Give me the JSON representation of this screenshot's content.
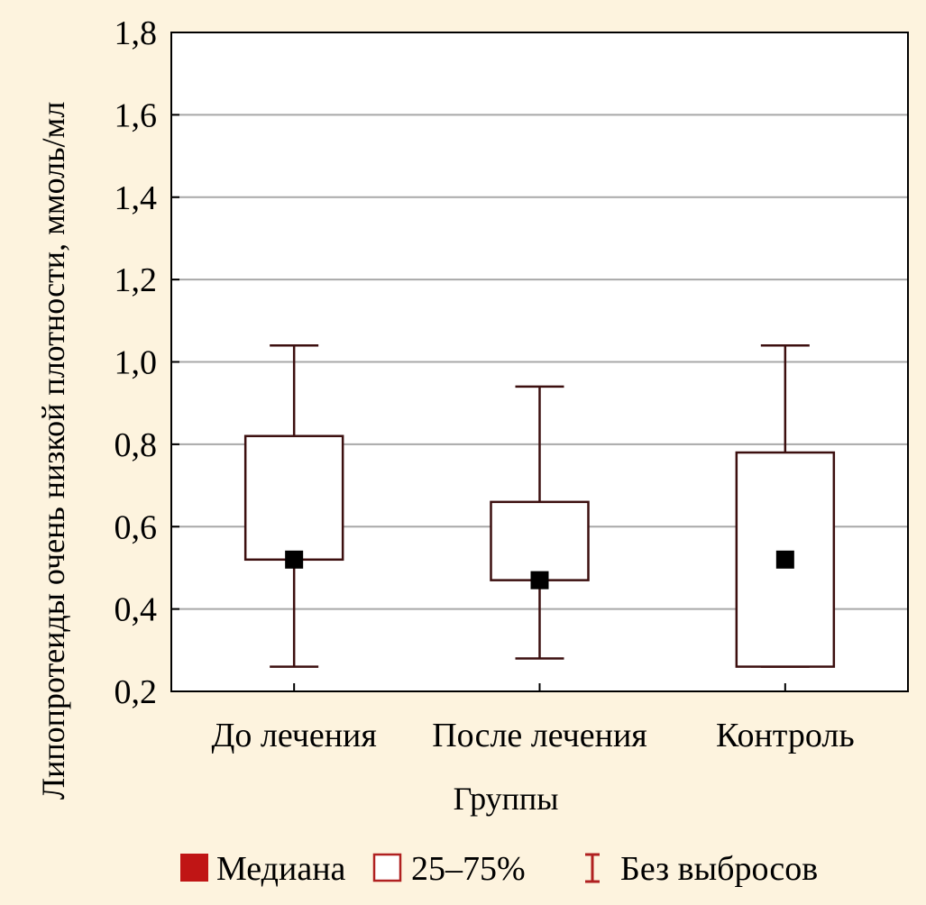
{
  "colors": {
    "background": "#fdf3de",
    "plot_background": "#ffffff",
    "grid": "#a8a8a8",
    "box_stroke": "#3c0f0f",
    "median_fill": "#000000",
    "legend_median": "#c01515",
    "legend_box": "#b02020",
    "legend_whisker": "#b02020"
  },
  "legend": {
    "median_icon": "filled-square-icon",
    "median_label": "Медиана",
    "box_icon": "outline-square-icon",
    "box_label": "25–75%",
    "whisker_icon": "whisker-range-icon",
    "whisker_label": "Без выбросов"
  },
  "chart_data": {
    "type": "box",
    "xlabel": "Группы",
    "ylabel": "Липопротеиды очень низкой плотности, ммоль/мл",
    "ylim": [
      0.2,
      1.8
    ],
    "yticks": [
      0.2,
      0.4,
      0.6,
      0.8,
      1.0,
      1.2,
      1.4,
      1.6,
      1.8
    ],
    "ytick_labels": [
      "0,2",
      "0,4",
      "0,6",
      "0,8",
      "1,0",
      "1,2",
      "1,4",
      "1,6",
      "1,8"
    ],
    "grid": true,
    "legend_position": "bottom",
    "categories": [
      "До лечения",
      "После лечения",
      "Контроль"
    ],
    "boxes": [
      {
        "median": 0.52,
        "q1": 0.52,
        "q3": 0.82,
        "min": 0.26,
        "max": 1.04
      },
      {
        "median": 0.47,
        "q1": 0.47,
        "q3": 0.66,
        "min": 0.28,
        "max": 0.94
      },
      {
        "median": 0.52,
        "q1": 0.26,
        "q3": 0.78,
        "min": 0.26,
        "max": 1.04
      }
    ]
  }
}
